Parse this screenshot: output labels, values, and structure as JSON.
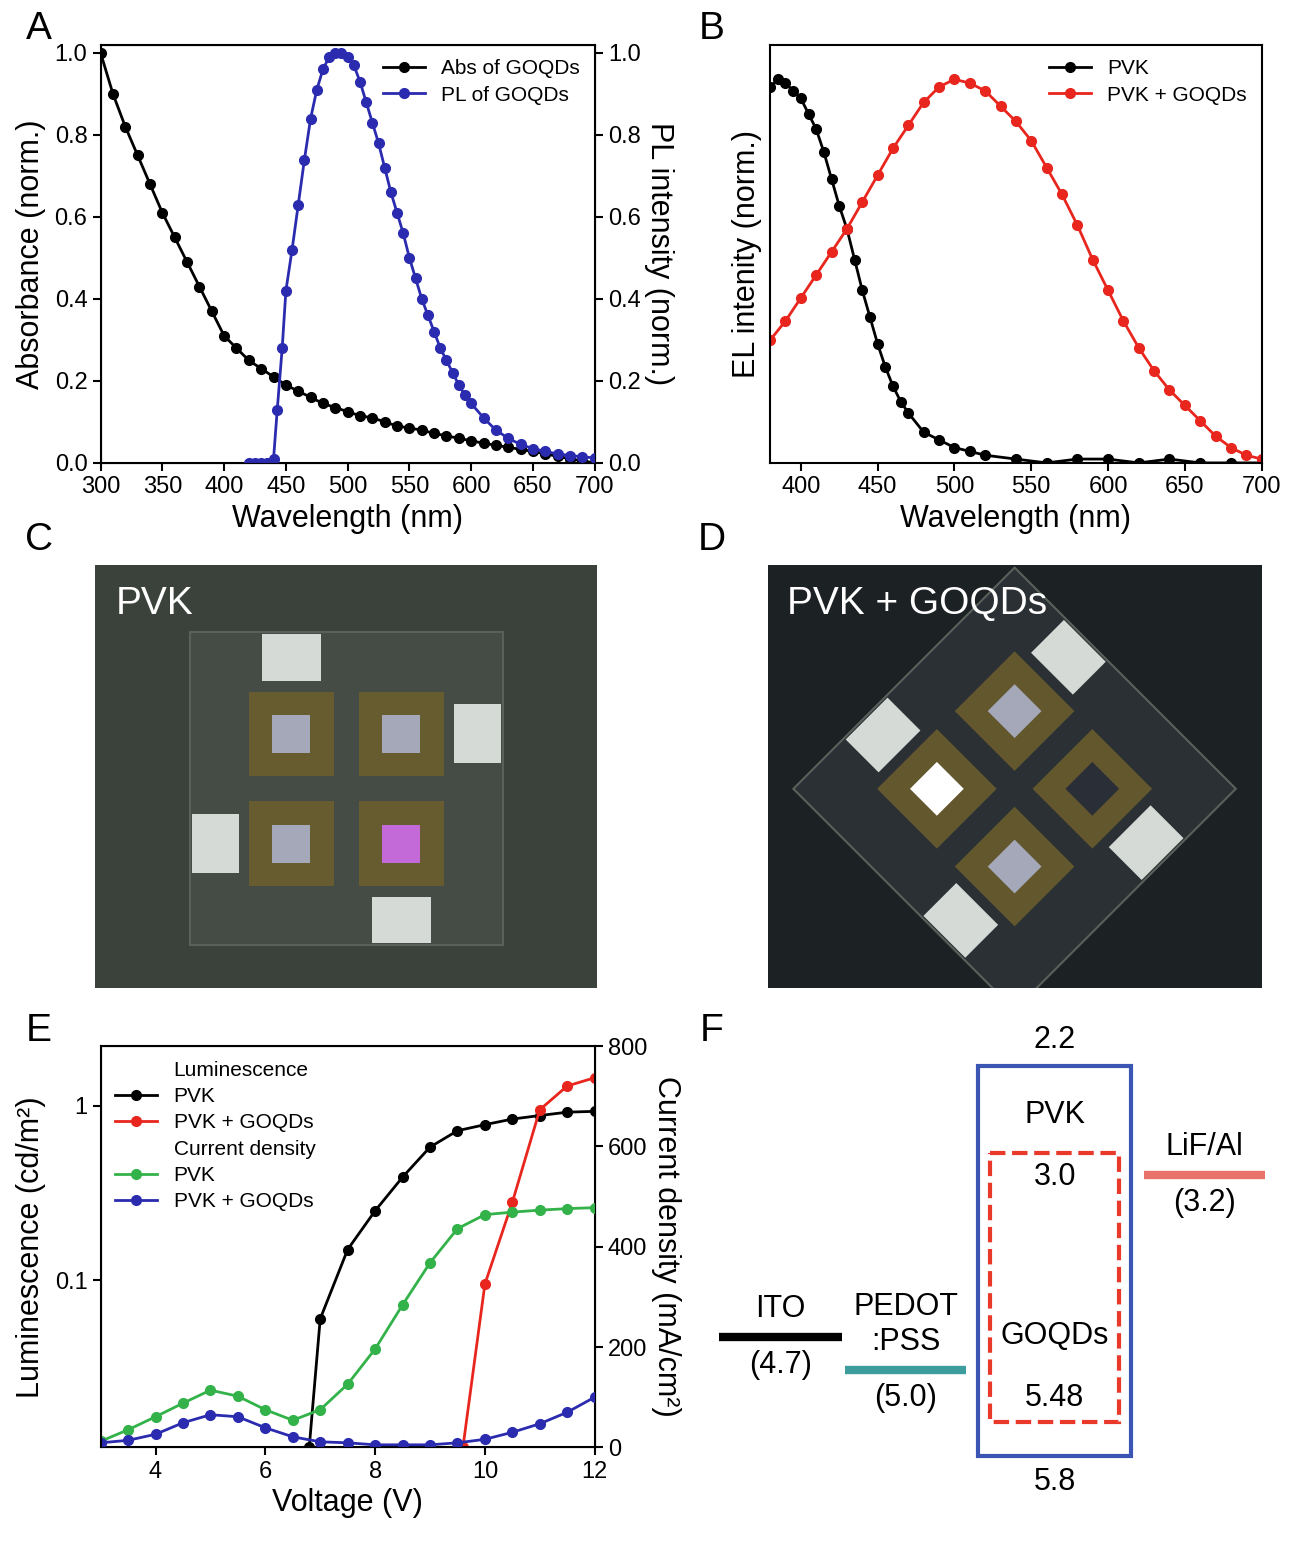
{
  "chart_data": [
    {
      "panel": "A",
      "type": "line",
      "x_label": "Wavelength (nm)",
      "y_label": "Absorbance (norm.)",
      "y2_label": "PL intensity (norm.)",
      "xlim": [
        300,
        700
      ],
      "xticks": [
        300,
        350,
        400,
        450,
        500,
        550,
        600,
        650,
        700
      ],
      "ylim": [
        0,
        1.02
      ],
      "yticks": [
        {
          "value": 0,
          "label": "0.0"
        },
        {
          "value": 0.2,
          "label": "0.2"
        },
        {
          "value": 0.4,
          "label": "0.4"
        },
        {
          "value": 0.6,
          "label": "0.6"
        },
        {
          "value": 0.8,
          "label": "0.8"
        },
        {
          "value": 1,
          "label": "1.0"
        }
      ],
      "y2lim": [
        0,
        1.02
      ],
      "y2ticks": [
        {
          "value": 0,
          "label": "0.0"
        },
        {
          "value": 0.2,
          "label": "0.2"
        },
        {
          "value": 0.4,
          "label": "0.4"
        },
        {
          "value": 0.6,
          "label": "0.6"
        },
        {
          "value": 0.8,
          "label": "0.8"
        },
        {
          "value": 1,
          "label": "1.0"
        }
      ],
      "legend": "upper right",
      "series": [
        {
          "name": "Abs of GOQDs",
          "color": "#000000",
          "marker": "circle",
          "line_style": "solid",
          "x": [
            300,
            310,
            320,
            330,
            340,
            350,
            360,
            370,
            380,
            390,
            400,
            410,
            420,
            430,
            440,
            450,
            460,
            470,
            480,
            490,
            500,
            510,
            520,
            530,
            540,
            550,
            560,
            570,
            580,
            590,
            600,
            610,
            620,
            630,
            640,
            650,
            660,
            670,
            680,
            690,
            700
          ],
          "values": [
            1.0,
            0.9,
            0.82,
            0.75,
            0.68,
            0.61,
            0.55,
            0.49,
            0.43,
            0.37,
            0.31,
            0.28,
            0.25,
            0.23,
            0.21,
            0.19,
            0.175,
            0.16,
            0.145,
            0.135,
            0.125,
            0.115,
            0.11,
            0.1,
            0.09,
            0.085,
            0.08,
            0.072,
            0.066,
            0.06,
            0.054,
            0.048,
            0.043,
            0.038,
            0.033,
            0.028,
            0.022,
            0.016,
            0.01,
            0.005,
            0.0
          ]
        },
        {
          "name": "PL of GOQDs",
          "color": "#2b2bb0",
          "marker": "circle",
          "line_style": "solid",
          "axis": "y2",
          "x": [
            420,
            425,
            430,
            435,
            440,
            443,
            447,
            450,
            455,
            460,
            465,
            470,
            475,
            480,
            485,
            490,
            495,
            500,
            505,
            510,
            515,
            520,
            525,
            530,
            535,
            540,
            545,
            550,
            555,
            560,
            565,
            570,
            575,
            580,
            585,
            590,
            595,
            600,
            610,
            620,
            630,
            640,
            650,
            660,
            670,
            680,
            690,
            700
          ],
          "values": [
            0.0,
            0.0,
            0.0,
            0.0,
            0.01,
            0.13,
            0.28,
            0.42,
            0.52,
            0.63,
            0.74,
            0.84,
            0.91,
            0.96,
            0.99,
            1.0,
            1.0,
            0.99,
            0.97,
            0.93,
            0.88,
            0.83,
            0.78,
            0.72,
            0.66,
            0.61,
            0.56,
            0.5,
            0.45,
            0.4,
            0.36,
            0.32,
            0.28,
            0.25,
            0.22,
            0.19,
            0.165,
            0.145,
            0.11,
            0.08,
            0.06,
            0.045,
            0.035,
            0.028,
            0.022,
            0.018,
            0.015,
            0.012
          ]
        }
      ]
    },
    {
      "panel": "B",
      "type": "line",
      "x_label": "Wavelength (nm)",
      "y_label": "EL intenity (norm.)",
      "xlim": [
        380,
        700
      ],
      "xticks": [
        400,
        450,
        500,
        550,
        600,
        650,
        700
      ],
      "ylim": [
        0,
        1.09
      ],
      "tick_labels": "x",
      "legend": "upper right",
      "series": [
        {
          "name": "PVK",
          "color": "#000000",
          "marker": "circle",
          "line_style": "solid",
          "x": [
            380,
            385,
            390,
            395,
            400,
            405,
            410,
            415,
            420,
            425,
            430,
            435,
            440,
            445,
            450,
            455,
            460,
            465,
            470,
            480,
            490,
            500,
            510,
            520,
            540,
            560,
            580,
            600,
            620,
            640,
            660,
            680,
            700
          ],
          "values": [
            0.98,
            1.0,
            0.99,
            0.97,
            0.95,
            0.91,
            0.87,
            0.81,
            0.74,
            0.67,
            0.61,
            0.53,
            0.45,
            0.38,
            0.31,
            0.25,
            0.2,
            0.16,
            0.13,
            0.08,
            0.06,
            0.04,
            0.03,
            0.02,
            0.01,
            0.0,
            0.01,
            0.01,
            0.0,
            0.01,
            0.0,
            0.0,
            0.0
          ]
        },
        {
          "name": "PVK + GOQDs",
          "color": "#e8261e",
          "marker": "circle",
          "line_style": "solid",
          "x": [
            380,
            390,
            400,
            410,
            420,
            430,
            440,
            450,
            460,
            470,
            480,
            490,
            500,
            510,
            520,
            530,
            540,
            550,
            560,
            570,
            580,
            590,
            600,
            610,
            620,
            630,
            640,
            650,
            660,
            670,
            680,
            690,
            700
          ],
          "values": [
            0.32,
            0.37,
            0.43,
            0.49,
            0.55,
            0.61,
            0.68,
            0.75,
            0.82,
            0.88,
            0.94,
            0.98,
            1.0,
            0.99,
            0.97,
            0.93,
            0.89,
            0.84,
            0.77,
            0.7,
            0.62,
            0.53,
            0.45,
            0.37,
            0.3,
            0.24,
            0.19,
            0.15,
            0.11,
            0.07,
            0.04,
            0.02,
            0.01
          ]
        }
      ]
    },
    {
      "panel": "E",
      "type": "line",
      "log": "y",
      "x_label": "Voltage (V)",
      "y_label": "Luminescence (cd/m²)",
      "y2_label": "Current density (mA/cm²)",
      "xlim": [
        3,
        12
      ],
      "xticks": [
        4,
        6,
        8,
        10,
        12
      ],
      "ylim": [
        0.011,
        2.2
      ],
      "yticks": [
        0.1,
        1
      ],
      "y2lim": [
        0,
        800
      ],
      "y2ticks": [
        0,
        200,
        400,
        600,
        800
      ],
      "legend": "upper left",
      "series": [
        {
          "name": "PVK",
          "group": "Luminescence",
          "color": "#000000",
          "marker": "circle",
          "line_style": "solid",
          "x": [
            6.8,
            7.0,
            7.5,
            8.0,
            8.5,
            9.0,
            9.5,
            10.0,
            10.5,
            11.0,
            11.5,
            12.0
          ],
          "values": [
            0.011,
            0.06,
            0.15,
            0.25,
            0.39,
            0.58,
            0.72,
            0.78,
            0.84,
            0.88,
            0.92,
            0.93
          ]
        },
        {
          "name": "PVK + GOQDs",
          "group": "Luminescence",
          "color": "#e8261e",
          "marker": "circle",
          "line_style": "solid",
          "x": [
            9.6,
            10.0,
            10.5,
            11.0,
            11.5,
            12.0
          ],
          "values": [
            0.011,
            0.095,
            0.28,
            0.95,
            1.3,
            1.45
          ]
        },
        {
          "name": "PVK",
          "group": "Current density",
          "color": "#33b24a",
          "marker": "circle",
          "line_style": "solid",
          "axis": "y2",
          "x": [
            3.0,
            3.5,
            4.0,
            4.5,
            5.0,
            5.5,
            6.0,
            6.5,
            7.0,
            7.5,
            8.0,
            8.5,
            9.0,
            9.5,
            10.0,
            10.5,
            11.0,
            11.5,
            12.0
          ],
          "values": [
            12,
            35,
            61,
            88,
            114,
            102,
            75,
            54,
            75,
            126,
            196,
            284,
            368,
            436,
            464,
            469,
            473,
            476,
            478
          ]
        },
        {
          "name": "PVK + GOQDs",
          "group": "Current density",
          "color": "#2b2bb0",
          "marker": "circle",
          "line_style": "solid",
          "axis": "y2",
          "x": [
            3.0,
            3.5,
            4.0,
            4.5,
            5.0,
            5.5,
            6.0,
            6.5,
            7.0,
            7.5,
            8.0,
            8.5,
            9.0,
            9.5,
            10.0,
            10.5,
            11.0,
            11.5,
            12.0
          ],
          "values": [
            9,
            14,
            26,
            49,
            65,
            61,
            39,
            21,
            11,
            9,
            5,
            5,
            5,
            9,
            16,
            30,
            47,
            70,
            100
          ]
        }
      ]
    }
  ],
  "images": [
    {
      "panel": "C",
      "type": "photo",
      "label": "PVK"
    },
    {
      "panel": "D",
      "type": "photo",
      "label": "PVK + GOQDs"
    }
  ],
  "diagram": {
    "panel": "F",
    "levels": [
      {
        "name": "ITO",
        "value": 4.7,
        "label": "(4.7)",
        "color": "#000000"
      },
      {
        "name": "PEDOT\n:PSS",
        "value": 5.0,
        "label": "(5.0)",
        "color": "#3d9c9c"
      },
      {
        "name": "LiF/Al",
        "value": 3.2,
        "label": "(3.2)",
        "color": "#e8736a"
      }
    ],
    "boxes": [
      {
        "name": "PVK",
        "lumo": 2.2,
        "homo": 5.8,
        "color": "#3a55b4",
        "line_style": "solid"
      },
      {
        "name": "GOQDs",
        "lumo": 3.0,
        "homo": 5.48,
        "color": "#e8392b",
        "line_style": "dashed"
      }
    ]
  }
}
